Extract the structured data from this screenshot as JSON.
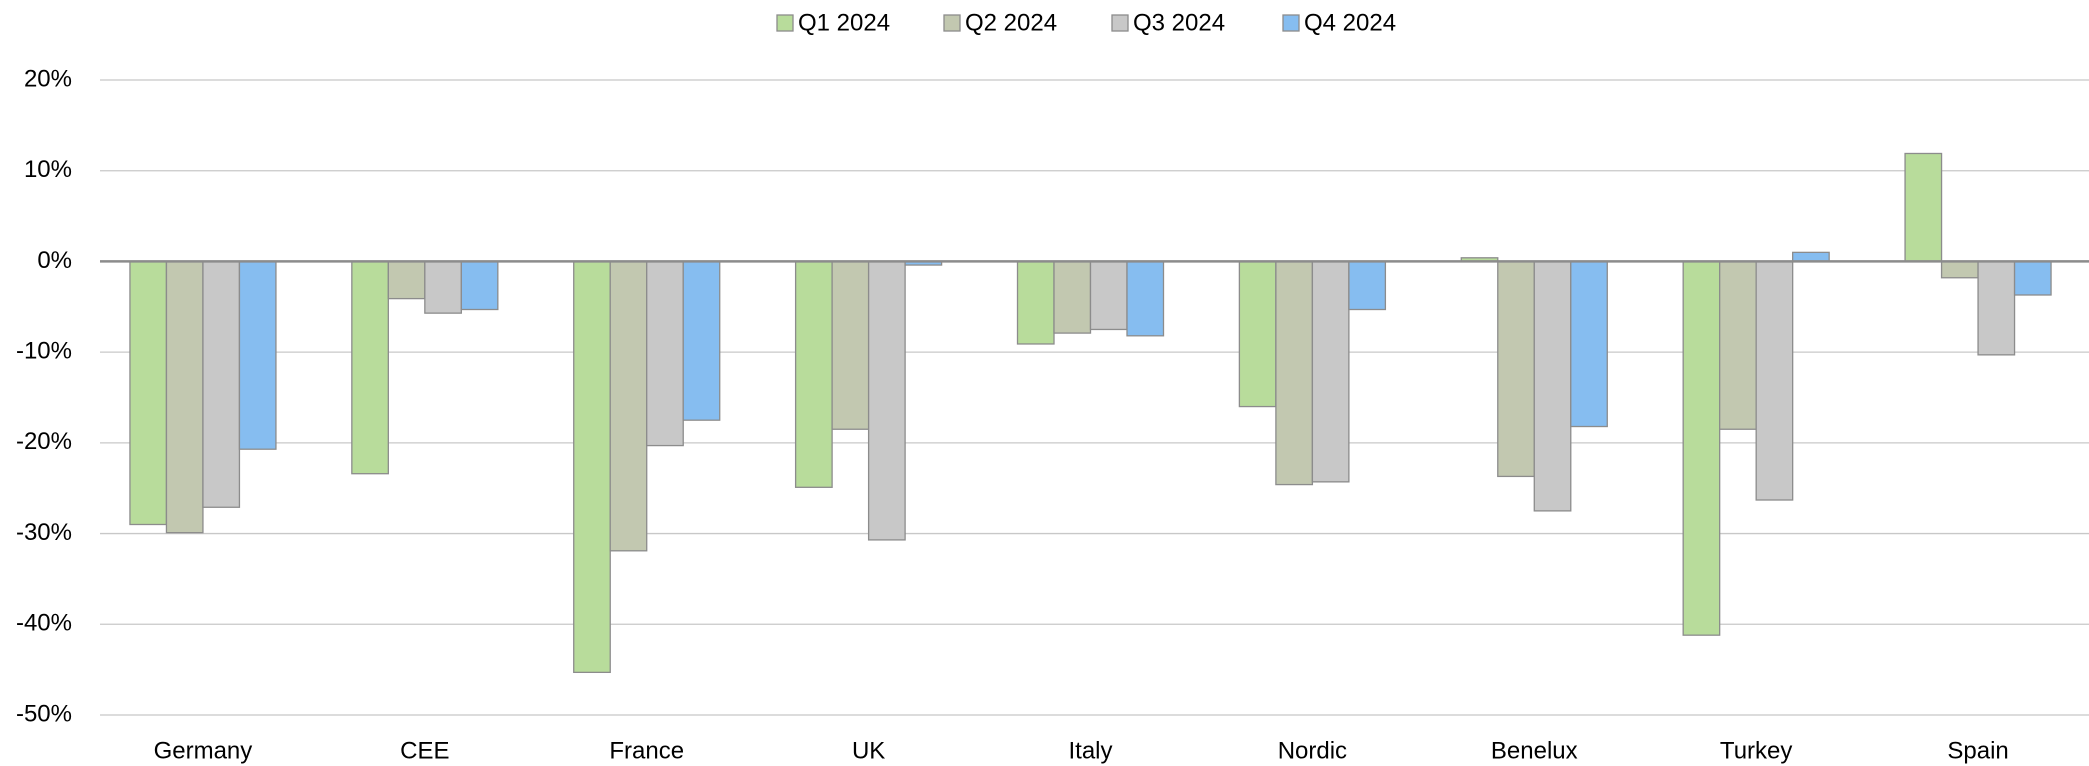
{
  "chart_data": {
    "type": "bar",
    "categories": [
      "Germany",
      "CEE",
      "France",
      "UK",
      "Italy",
      "Nordic",
      "Benelux",
      "Turkey",
      "Spain"
    ],
    "series": [
      {
        "name": "Q1 2024",
        "color": "#b8dc9b",
        "values": [
          -29.0,
          -23.4,
          -45.3,
          -24.9,
          -9.1,
          -16.0,
          0.4,
          -41.2,
          11.9
        ]
      },
      {
        "name": "Q2 2024",
        "color": "#c2c8b0",
        "values": [
          -29.9,
          -4.1,
          -31.9,
          -18.5,
          -7.9,
          -24.6,
          -23.7,
          -18.5,
          -1.8
        ]
      },
      {
        "name": "Q3 2024",
        "color": "#c8c8c8",
        "values": [
          -27.1,
          -5.7,
          -20.3,
          -30.7,
          -7.5,
          -24.3,
          -27.5,
          -26.3,
          -10.3
        ]
      },
      {
        "name": "Q4 2024",
        "color": "#86bdf0",
        "values": [
          -20.7,
          -5.3,
          -17.5,
          -0.4,
          -8.2,
          -5.3,
          -18.2,
          1.0,
          -3.7
        ]
      }
    ],
    "ylim": [
      -50,
      20
    ],
    "yticks": [
      {
        "value": -50,
        "label": "-50%"
      },
      {
        "value": -40,
        "label": "-40%"
      },
      {
        "value": -30,
        "label": "-30%"
      },
      {
        "value": -20,
        "label": "-20%"
      },
      {
        "value": -10,
        "label": "-10%"
      },
      {
        "value": 0,
        "label": "0%"
      },
      {
        "value": 10,
        "label": "10%"
      },
      {
        "value": 20,
        "label": "20%"
      }
    ],
    "grid": true,
    "legend": "top"
  }
}
